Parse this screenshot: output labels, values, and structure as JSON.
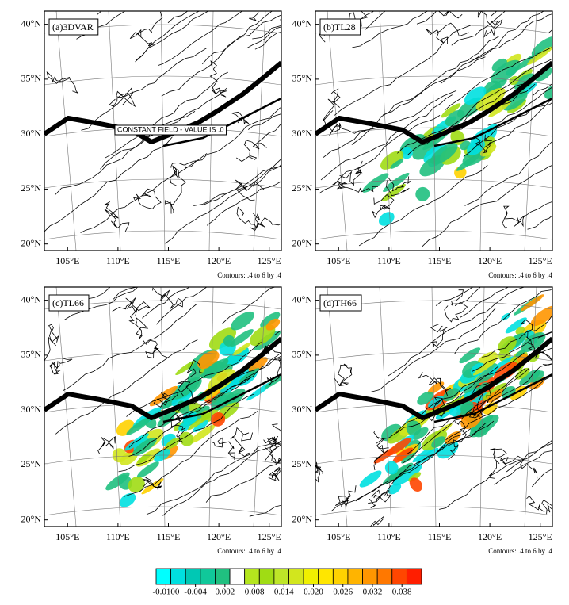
{
  "panels": [
    {
      "label": "(a)3DVAR",
      "note": "CONSTANT FIELD - VALUE IS .0",
      "contours": "Contours: .4 to 6 by .4"
    },
    {
      "label": "(b)TL28",
      "contours": "Contours: .4 to 6 by .4"
    },
    {
      "label": "(c)TL66",
      "contours": "Contours: .4 to 6 by .4"
    },
    {
      "label": "(d)TH66",
      "contours": "Contours: .4 to 6 by .4"
    }
  ],
  "lonlim": [
    102.7,
    126.2
  ],
  "latlim": [
    19.4,
    41.2
  ],
  "lon_ticks": [
    {
      "value": 105,
      "label": "105°E"
    },
    {
      "value": 110,
      "label": "110°E"
    },
    {
      "value": 115,
      "label": "115°E"
    },
    {
      "value": 120,
      "label": "120°E"
    },
    {
      "value": 125,
      "label": "125°E"
    }
  ],
  "lat_ticks": [
    {
      "value": 20,
      "label": "20°N"
    },
    {
      "value": 25,
      "label": "25°N"
    },
    {
      "value": 30,
      "label": "30°N"
    },
    {
      "value": 35,
      "label": "35°N"
    },
    {
      "value": 40,
      "label": "40°N"
    }
  ],
  "colorbar": {
    "lim": [
      -0.012,
      0.042
    ],
    "colors": [
      "#00ffff",
      "#00e0e0",
      "#00c8b4",
      "#10c89a",
      "#20c080",
      "#ffffff",
      "#b4e61e",
      "#a0dc14",
      "#bee628",
      "#d2e61e",
      "#f0f000",
      "#ffe600",
      "#ffd200",
      "#ffb400",
      "#ff9600",
      "#ff7800",
      "#ff4600",
      "#ff1e00"
    ],
    "ticks": [
      {
        "value": -0.01,
        "label": "-0.0100"
      },
      {
        "value": -0.004,
        "label": "-0.004"
      },
      {
        "value": 0.002,
        "label": "0.002"
      },
      {
        "value": 0.008,
        "label": "0.008"
      },
      {
        "value": 0.014,
        "label": "0.014"
      },
      {
        "value": 0.02,
        "label": "0.020"
      },
      {
        "value": 0.026,
        "label": "0.026"
      },
      {
        "value": 0.032,
        "label": "0.032"
      },
      {
        "value": 0.038,
        "label": "0.038"
      }
    ]
  }
}
